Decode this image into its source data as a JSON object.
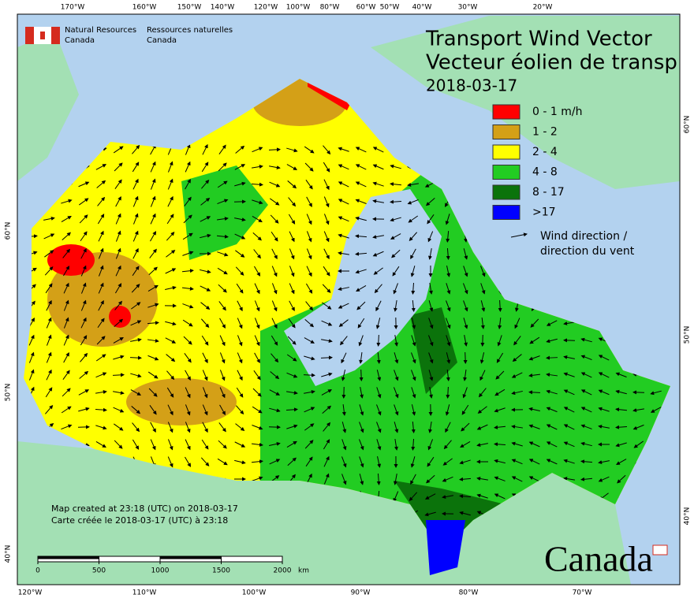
{
  "header": {
    "agency_en": [
      "Natural Resources",
      "Canada"
    ],
    "agency_fr": [
      "Ressources naturelles",
      "Canada"
    ]
  },
  "title": [
    "Transport Wind Vector",
    "Vecteur éolien de transp"
  ],
  "date": "2018-03-17",
  "legend": [
    {
      "label": "0 - 1 m/h",
      "color": "#ff0000"
    },
    {
      "label": "1 - 2",
      "color": "#d4a017"
    },
    {
      "label": "2 - 4",
      "color": "#ffff00"
    },
    {
      "label": "4 - 8",
      "color": "#22cc22"
    },
    {
      "label": "8 - 17",
      "color": "#0b730b"
    },
    {
      "label": ">17",
      "color": "#0000ff"
    }
  ],
  "wind_legend": [
    "Wind direction /",
    "direction du vent"
  ],
  "note": [
    "Map created at 23:18 (UTC) on 2018-03-17",
    "Carte créée le 2018-03-17 (UTC) à 23:18"
  ],
  "scale": {
    "ticks": [
      0,
      500,
      1000,
      1500,
      2000
    ],
    "unit": "km"
  },
  "graticule": {
    "top": [
      "170°W",
      "160°W",
      "150°W",
      "140°W",
      "120°W",
      "100°W",
      "80°W",
      "60°W",
      "50°W",
      "40°W",
      "30°W",
      "20°W"
    ],
    "bottom": [
      "120°W",
      "110°W",
      "100°W",
      "90°W",
      "80°W",
      "70°W"
    ],
    "left": [
      "60°N",
      "50°N",
      "40°N"
    ],
    "right": [
      "60°N",
      "50°N",
      "40°N"
    ]
  },
  "wordmark": "Canada"
}
